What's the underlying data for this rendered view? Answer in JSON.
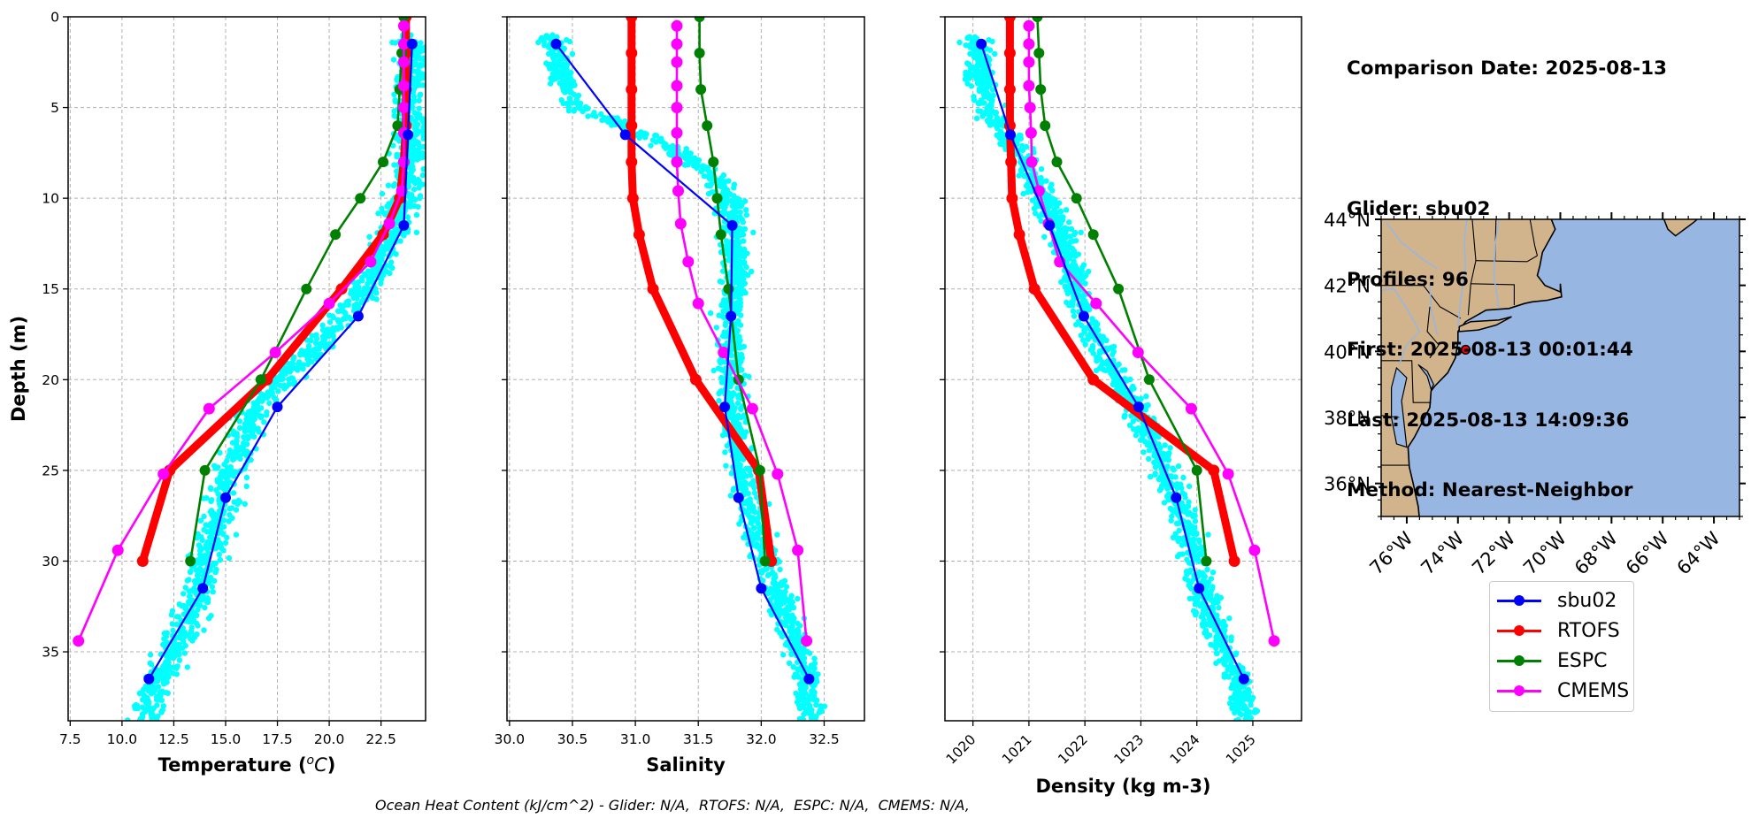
{
  "info_panel": {
    "comparison_date": "Comparison Date: 2025-08-13",
    "glider": "Glider: sbu02",
    "profiles": "Profiles: 96",
    "first": "First: 2025-08-13 00:01:44",
    "last": "Last: 2025-08-13 14:09:36",
    "method": "Method: Nearest-Neighbor"
  },
  "footer": "Ocean Heat Content (kJ/cm^2) - Glider: N/A,  RTOFS: N/A,  ESPC: N/A,  CMEMS: N/A,",
  "legend": [
    {
      "label": "sbu02",
      "color": "#0000ff"
    },
    {
      "label": "RTOFS",
      "color": "#ff0000"
    },
    {
      "label": "ESPC",
      "color": "#008000"
    },
    {
      "label": "CMEMS",
      "color": "#ff00ff"
    }
  ],
  "colors": {
    "scatter": "#00ffff",
    "land": "#d2b48c",
    "ocean": "#97b6e1",
    "lakes": "#97b6e1",
    "grid": "#b0b0b0",
    "glider_marker": "#ff0000"
  },
  "map": {
    "lat_ticks": [
      "44°N",
      "42°N",
      "40°N",
      "38°N",
      "36°N"
    ],
    "lon_ticks": [
      "76°W",
      "74°W",
      "72°W",
      "70°W",
      "68°W",
      "66°W",
      "64°W"
    ],
    "extent": {
      "lon_min": -77,
      "lon_max": -63,
      "lat_min": 35,
      "lat_max": 44
    },
    "glider_position": {
      "lon": -73.7,
      "lat": 40.05
    }
  },
  "chart_data": [
    {
      "type": "line",
      "panel": "temperature",
      "xlabel": "Temperature (°C)",
      "ylabel": "Depth (m)",
      "xlim": [
        7.4,
        24.65
      ],
      "ylim": [
        38.8,
        0
      ],
      "xticks": [
        "7.5",
        "10.0",
        "12.5",
        "15.0",
        "17.5",
        "20.0",
        "22.5"
      ],
      "yticks": [
        "0",
        "5",
        "10",
        "15",
        "20",
        "25",
        "30",
        "35"
      ],
      "grid": true,
      "scatter_cloud": {
        "name": "glider observations",
        "trend": [
          [
            1,
            24.0
          ],
          [
            3,
            24.0
          ],
          [
            6,
            23.9
          ],
          [
            8,
            23.8
          ],
          [
            10,
            23.6
          ],
          [
            12,
            23.0
          ],
          [
            14,
            22.3
          ],
          [
            16,
            21.2
          ],
          [
            18,
            19.5
          ],
          [
            20,
            17.6
          ],
          [
            22,
            16.3
          ],
          [
            24,
            15.6
          ],
          [
            26,
            15.0
          ],
          [
            28,
            14.5
          ],
          [
            30,
            14.1
          ],
          [
            32,
            13.6
          ],
          [
            34,
            12.9
          ],
          [
            36,
            12.0
          ],
          [
            38,
            11.3
          ]
        ],
        "spread": 0.9
      },
      "series": [
        {
          "name": "sbu02",
          "depth": [
            1.5,
            6.5,
            11.5,
            16.5,
            21.5,
            26.5,
            31.5,
            36.5
          ],
          "values": [
            24.0,
            23.8,
            23.6,
            21.4,
            17.5,
            15.0,
            13.9,
            11.3
          ]
        },
        {
          "name": "RTOFS",
          "depth": [
            0,
            2,
            4,
            6,
            8,
            10,
            12,
            15,
            20,
            25,
            30
          ],
          "values": [
            23.7,
            23.7,
            23.7,
            23.7,
            23.6,
            23.4,
            22.6,
            20.6,
            17.0,
            12.3,
            11.0
          ]
        },
        {
          "name": "ESPC",
          "depth": [
            0,
            2,
            4,
            6,
            8,
            10,
            12,
            15,
            20,
            25,
            30
          ],
          "values": [
            23.6,
            23.5,
            23.4,
            23.3,
            22.6,
            21.5,
            20.3,
            18.9,
            16.7,
            14.0,
            13.3
          ]
        },
        {
          "name": "CMEMS",
          "depth": [
            0.5,
            1.5,
            2.5,
            3.8,
            5.0,
            6.4,
            8.0,
            9.6,
            11.4,
            13.5,
            15.8,
            18.5,
            21.6,
            25.2,
            29.4,
            34.4
          ],
          "values": [
            23.6,
            23.6,
            23.6,
            23.6,
            23.6,
            23.6,
            23.6,
            23.5,
            22.9,
            22.0,
            20.0,
            17.4,
            14.2,
            12.0,
            9.8,
            7.9
          ]
        }
      ]
    },
    {
      "type": "line",
      "panel": "salinity",
      "xlabel": "Salinity",
      "xlim": [
        29.98,
        32.82
      ],
      "ylim": [
        38.8,
        0
      ],
      "xticks": [
        "30.0",
        "30.5",
        "31.0",
        "31.5",
        "32.0",
        "32.5"
      ],
      "yticks": [
        "0",
        "5",
        "10",
        "15",
        "20",
        "25",
        "30",
        "35"
      ],
      "grid": true,
      "scatter_cloud": {
        "name": "glider observations",
        "trend": [
          [
            1,
            30.35
          ],
          [
            3,
            30.38
          ],
          [
            5,
            30.55
          ],
          [
            6,
            30.9
          ],
          [
            7,
            31.2
          ],
          [
            8,
            31.45
          ],
          [
            9,
            31.65
          ],
          [
            10,
            31.75
          ],
          [
            12,
            31.78
          ],
          [
            14,
            31.8
          ],
          [
            16,
            31.78
          ],
          [
            18,
            31.75
          ],
          [
            20,
            31.75
          ],
          [
            22,
            31.78
          ],
          [
            24,
            31.82
          ],
          [
            26,
            31.88
          ],
          [
            28,
            31.95
          ],
          [
            30,
            32.05
          ],
          [
            32,
            32.15
          ],
          [
            34,
            32.25
          ],
          [
            36,
            32.35
          ],
          [
            38,
            32.38
          ]
        ],
        "spread": 0.12
      },
      "series": [
        {
          "name": "sbu02",
          "depth": [
            1.5,
            6.5,
            11.5,
            16.5,
            21.5,
            26.5,
            31.5,
            36.5
          ],
          "values": [
            30.37,
            30.92,
            31.77,
            31.76,
            31.71,
            31.82,
            32.0,
            32.38
          ]
        },
        {
          "name": "RTOFS",
          "depth": [
            0,
            2,
            4,
            6,
            8,
            10,
            12,
            15,
            20,
            25,
            30
          ],
          "values": [
            30.97,
            30.97,
            30.97,
            30.97,
            30.97,
            30.98,
            31.03,
            31.14,
            31.48,
            31.98,
            32.08
          ]
        },
        {
          "name": "ESPC",
          "depth": [
            0,
            2,
            4,
            6,
            8,
            10,
            12,
            15,
            20,
            25,
            30
          ],
          "values": [
            31.51,
            31.51,
            31.52,
            31.57,
            31.62,
            31.65,
            31.68,
            31.74,
            31.82,
            31.99,
            32.03
          ]
        },
        {
          "name": "CMEMS",
          "depth": [
            0.5,
            1.5,
            2.5,
            3.8,
            5.0,
            6.4,
            8.0,
            9.6,
            11.4,
            13.5,
            15.8,
            18.5,
            21.6,
            25.2,
            29.4,
            34.4
          ],
          "values": [
            31.33,
            31.33,
            31.33,
            31.33,
            31.33,
            31.33,
            31.33,
            31.34,
            31.36,
            31.42,
            31.5,
            31.7,
            31.93,
            32.13,
            32.29,
            32.36
          ]
        }
      ]
    },
    {
      "type": "line",
      "panel": "density",
      "xlabel": "Density (kg m-3)",
      "xlim": [
        1019.5,
        1025.87
      ],
      "ylim": [
        38.8,
        0
      ],
      "xticks": [
        "1020",
        "1021",
        "1022",
        "1023",
        "1024",
        "1025"
      ],
      "yticks": [
        "0",
        "5",
        "10",
        "15",
        "20",
        "25",
        "30",
        "35"
      ],
      "grid": true,
      "scatter_cloud": {
        "name": "glider observations",
        "trend": [
          [
            1,
            1020.05
          ],
          [
            3,
            1020.1
          ],
          [
            5,
            1020.3
          ],
          [
            7,
            1020.7
          ],
          [
            9,
            1021.1
          ],
          [
            11,
            1021.45
          ],
          [
            13,
            1021.7
          ],
          [
            15,
            1021.85
          ],
          [
            17,
            1022.05
          ],
          [
            19,
            1022.4
          ],
          [
            21,
            1022.8
          ],
          [
            23,
            1023.15
          ],
          [
            25,
            1023.45
          ],
          [
            27,
            1023.7
          ],
          [
            29,
            1023.9
          ],
          [
            31,
            1024.05
          ],
          [
            33,
            1024.25
          ],
          [
            35,
            1024.5
          ],
          [
            37,
            1024.8
          ],
          [
            38.5,
            1024.85
          ]
        ],
        "spread": 0.28
      },
      "series": [
        {
          "name": "sbu02",
          "depth": [
            1.5,
            6.5,
            11.5,
            16.5,
            21.5,
            26.5,
            31.5,
            36.5
          ],
          "values": [
            1020.15,
            1020.67,
            1021.37,
            1021.98,
            1022.96,
            1023.63,
            1024.04,
            1024.84
          ]
        },
        {
          "name": "RTOFS",
          "depth": [
            0,
            2,
            4,
            6,
            8,
            10,
            12,
            15,
            20,
            25,
            30
          ],
          "values": [
            1020.66,
            1020.66,
            1020.66,
            1020.66,
            1020.68,
            1020.7,
            1020.83,
            1021.1,
            1022.15,
            1024.3,
            1024.67
          ]
        },
        {
          "name": "ESPC",
          "depth": [
            0,
            2,
            4,
            6,
            8,
            10,
            12,
            15,
            20,
            25,
            30
          ],
          "values": [
            1021.15,
            1021.18,
            1021.21,
            1021.29,
            1021.5,
            1021.85,
            1022.15,
            1022.6,
            1023.15,
            1024.0,
            1024.17
          ]
        },
        {
          "name": "CMEMS",
          "depth": [
            0.5,
            1.5,
            2.5,
            3.8,
            5.0,
            6.4,
            8.0,
            9.6,
            11.4,
            13.5,
            15.8,
            18.5,
            21.6,
            25.2,
            29.4,
            34.4
          ],
          "values": [
            1021.0,
            1021.0,
            1021.0,
            1021.0,
            1021.02,
            1021.04,
            1021.05,
            1021.18,
            1021.35,
            1021.55,
            1022.2,
            1022.95,
            1023.9,
            1024.56,
            1025.03,
            1025.38
          ]
        }
      ]
    }
  ]
}
